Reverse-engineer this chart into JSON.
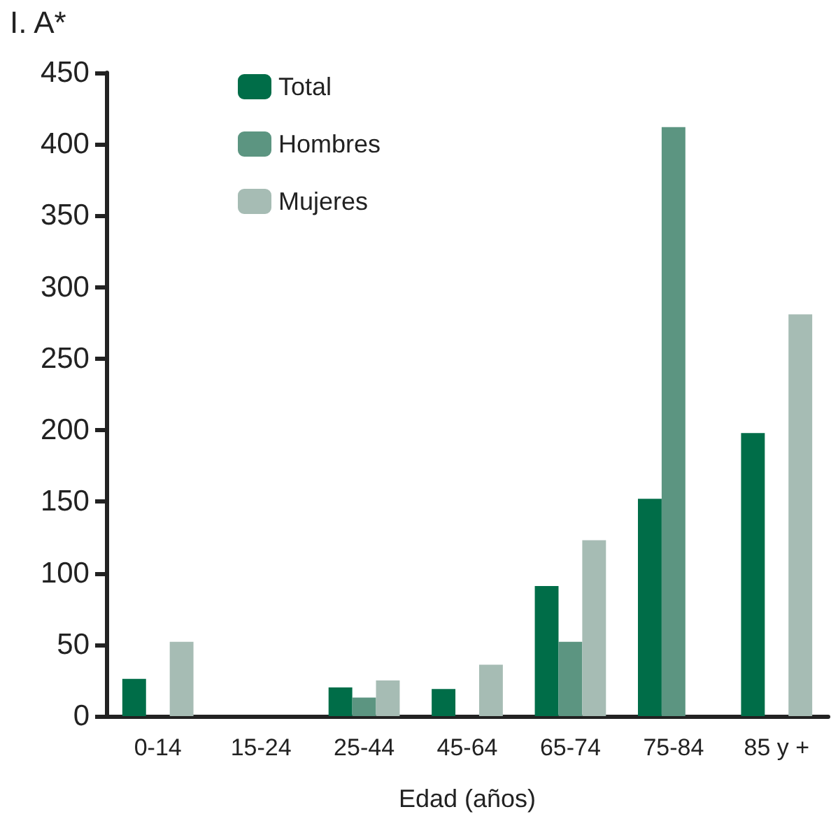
{
  "chart_data": {
    "type": "bar",
    "title": "I. A*",
    "xlabel": "Edad (años)",
    "categories": [
      "0-14",
      "15-24",
      "25-44",
      "45-64",
      "65-74",
      "75-84",
      "85 y +"
    ],
    "series": [
      {
        "name": "Total",
        "color": "#006d48",
        "values": [
          26,
          null,
          20,
          19,
          91,
          152,
          198
        ]
      },
      {
        "name": "Hombres",
        "color": "#5c9581",
        "values": [
          null,
          null,
          13,
          null,
          52,
          412,
          null
        ]
      },
      {
        "name": "Mujeres",
        "color": "#a6bcb4",
        "values": [
          52,
          null,
          25,
          36,
          123,
          null,
          281
        ]
      }
    ],
    "ylim": [
      0,
      450
    ],
    "yticks": [
      0,
      50,
      100,
      150,
      200,
      250,
      300,
      350,
      400,
      450
    ],
    "grid": false,
    "legend": "top left"
  }
}
